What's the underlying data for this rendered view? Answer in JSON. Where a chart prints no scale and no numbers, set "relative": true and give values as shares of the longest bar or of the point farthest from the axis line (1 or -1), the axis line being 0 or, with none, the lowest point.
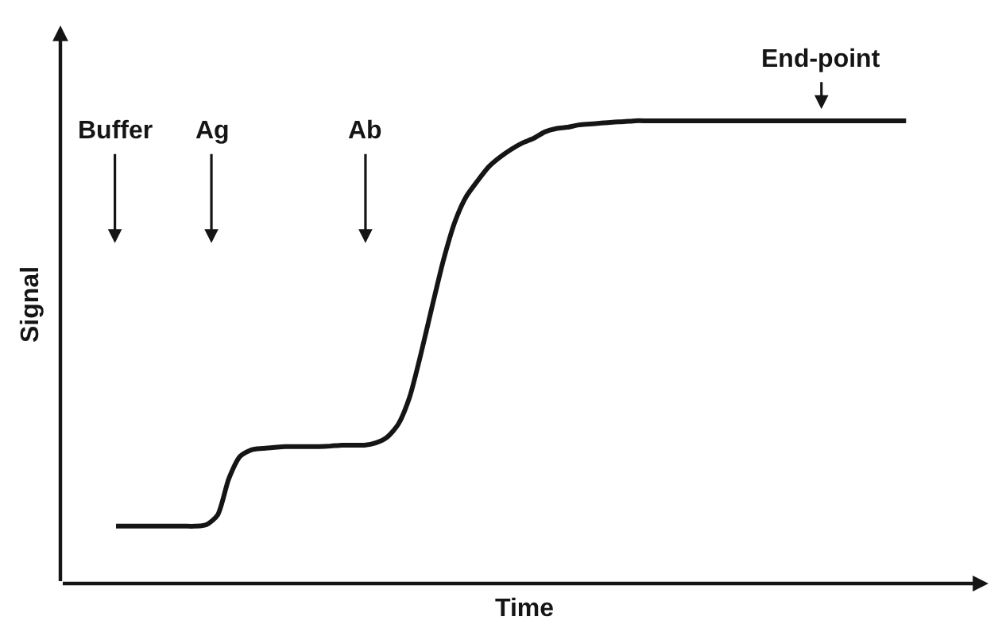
{
  "chart_data": {
    "type": "line",
    "relative": true,
    "xlabel": "Time",
    "ylabel": "Signal",
    "categories": [
      null,
      null,
      null,
      null,
      null,
      null,
      null,
      null,
      null,
      null,
      null,
      null,
      null,
      null,
      null,
      null,
      null,
      null,
      null,
      null,
      null,
      null,
      null,
      null,
      null,
      null,
      null,
      null,
      null,
      null,
      null,
      null,
      null,
      null,
      null,
      null,
      null,
      null,
      null,
      null,
      null,
      null,
      null,
      null,
      null,
      null,
      null,
      null,
      null,
      null,
      null,
      null,
      null,
      null,
      null,
      null,
      null,
      null,
      null,
      null,
      null,
      null,
      null,
      null,
      null,
      null,
      null,
      null,
      null,
      null,
      null
    ],
    "series": [
      {
        "color": "#151515",
        "values": [
          0.124,
          0.124,
          0.124,
          0.124,
          0.124,
          0.124,
          0.124,
          0.124,
          0.127,
          0.148,
          0.227,
          0.275,
          0.289,
          0.292,
          0.294,
          0.296,
          0.296,
          0.296,
          0.296,
          0.297,
          0.299,
          0.299,
          0.299,
          0.304,
          0.316,
          0.344,
          0.402,
          0.495,
          0.598,
          0.698,
          0.78,
          0.835,
          0.869,
          0.9,
          0.921,
          0.938,
          0.952,
          0.962,
          0.976,
          0.983,
          0.986,
          0.991,
          0.993,
          0.995,
          0.997,
          0.998,
          1,
          1,
          1,
          1,
          1,
          1,
          1,
          1,
          1,
          1,
          1,
          1,
          1,
          1,
          1,
          1,
          1,
          1,
          1,
          1,
          1,
          1,
          1,
          1,
          1
        ]
      }
    ],
    "annotations": [
      "Buffer",
      "Ag",
      "Ab",
      "End-point"
    ]
  }
}
